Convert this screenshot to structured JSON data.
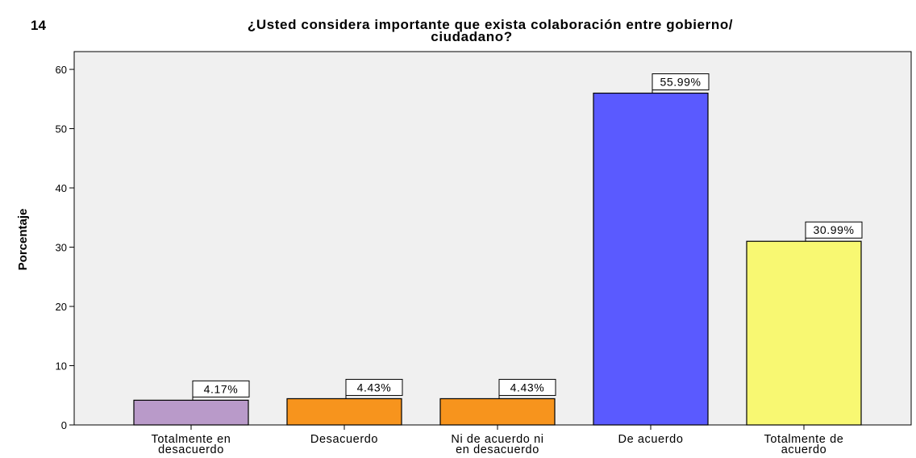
{
  "chart_data": {
    "type": "bar",
    "number": "14",
    "title": [
      "¿Usted considera importante que exista colaboración entre gobierno/",
      "ciudadano?"
    ],
    "y_label": "Porcentaje",
    "categories": [
      "Totalmente en desacuerdo",
      "Desacuerdo",
      "Ni de acuerdo ni en desacuerdo",
      "De acuerdo",
      "Totalmente de acuerdo"
    ],
    "values": [
      4.17,
      4.43,
      4.43,
      55.99,
      30.99
    ],
    "value_labels": [
      "4.17%",
      "4.43%",
      "4.43%",
      "55.99%",
      "30.99%"
    ],
    "colors": [
      "#b99ac9",
      "#f7941d",
      "#f7941d",
      "#5a5aff",
      "#f8f872"
    ],
    "ylim": [
      0,
      63
    ],
    "yticks": [
      0,
      10,
      20,
      30,
      40,
      50,
      60
    ],
    "grid": false
  }
}
